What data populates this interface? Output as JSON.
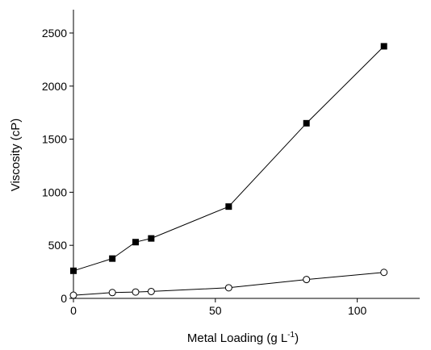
{
  "chart_data": {
    "type": "scatter",
    "title": "",
    "xlabel": "Metal Loading (g L",
    "xlabel_sup": "-1",
    "xlabel_tail": ")",
    "ylabel": "Viscosity (cP)",
    "xlim": [
      0,
      122
    ],
    "ylim": [
      0,
      2720
    ],
    "xticks": [
      0,
      50,
      100
    ],
    "yticks": [
      0,
      500,
      1000,
      1500,
      2000,
      2500
    ],
    "grid": false,
    "legend": "none",
    "series": [
      {
        "marker": "filled-square",
        "color": "#000000",
        "x": [
          0,
          13.7,
          21.9,
          27.4,
          54.7,
          82.1,
          109.4
        ],
        "y": [
          260,
          375,
          530,
          565,
          865,
          1650,
          2375
        ]
      },
      {
        "marker": "open-circle",
        "color": "#000000",
        "x": [
          0,
          13.7,
          21.9,
          27.4,
          54.7,
          82.1,
          109.4
        ],
        "y": [
          30,
          55,
          60,
          65,
          100,
          178,
          245
        ]
      }
    ]
  }
}
